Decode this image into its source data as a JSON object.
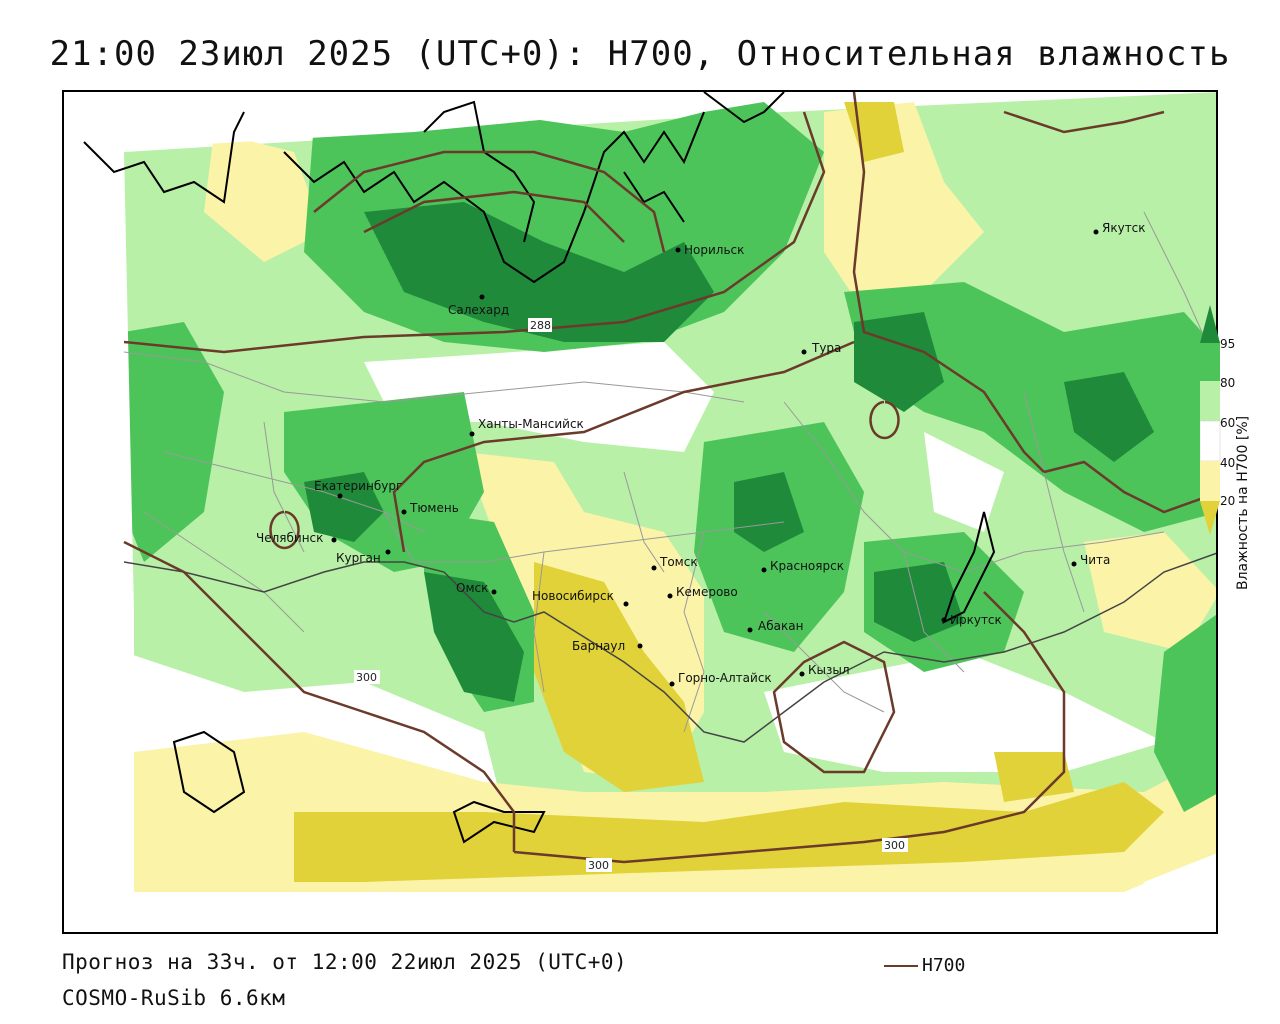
{
  "header": {
    "title": "21:00 23июл 2025 (UTC+0): H700, Относительная влажность"
  },
  "footer": {
    "forecast": "Прогноз на 33ч. от 12:00 22июл 2025 (UTC+0)",
    "model": "COSMO-RuSib 6.6км",
    "line_legend": "H700"
  },
  "colorbar": {
    "title": "Влажность на H700 [%]",
    "ticks": [
      "95",
      "80",
      "60",
      "40",
      "20"
    ],
    "colors": {
      "c95": "#1f8a3a",
      "c80": "#4cc45a",
      "c60": "#b8f0a8",
      "c40": "#ffffff",
      "c20": "#fbf3a8",
      "c0": "#e0d238"
    }
  },
  "contours": {
    "color": "#6b3a2a",
    "labels": [
      "288",
      "300",
      "300",
      "300"
    ]
  },
  "cities": [
    {
      "name": "Якутск"
    },
    {
      "name": "Норильск"
    },
    {
      "name": "Салехард"
    },
    {
      "name": "Тура"
    },
    {
      "name": "Ханты-Мансийск"
    },
    {
      "name": "Екатеринбург"
    },
    {
      "name": "Тюмень"
    },
    {
      "name": "Челябинск"
    },
    {
      "name": "Курган"
    },
    {
      "name": "Омск"
    },
    {
      "name": "Томск"
    },
    {
      "name": "Красноярск"
    },
    {
      "name": "Новосибирск"
    },
    {
      "name": "Кемерово"
    },
    {
      "name": "Абакан"
    },
    {
      "name": "Барнаул"
    },
    {
      "name": "Горно-Алтайск"
    },
    {
      "name": "Кызыл"
    },
    {
      "name": "Иркутск"
    },
    {
      "name": "Чита"
    }
  ]
}
